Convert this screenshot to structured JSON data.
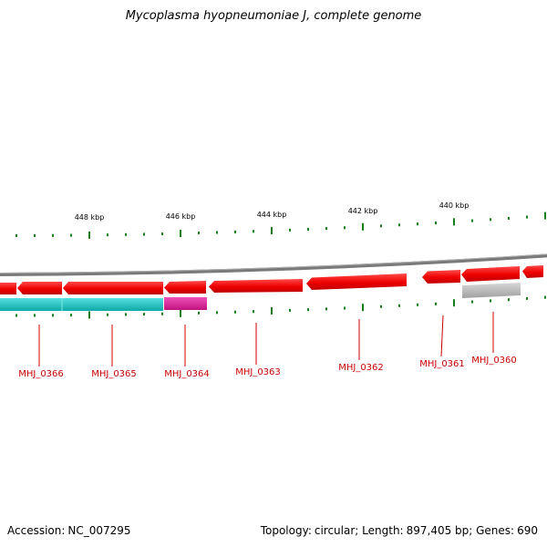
{
  "title": "Mycoplasma hyopneumoniae J, complete genome",
  "footer": {
    "accession_label": "Accession:",
    "accession": "NC_007295",
    "topology_label": "Topology:",
    "topology": "circular",
    "length_label": "Length:",
    "length": "897,405 bp",
    "genes_label": "Genes:",
    "genes": "690"
  },
  "ruler": {
    "labels": [
      "448 kbp",
      "446 kbp",
      "444 kbp",
      "442 kbp",
      "440 kbp"
    ]
  },
  "genes": [
    {
      "locus": "MHJ_0366"
    },
    {
      "locus": "MHJ_0365"
    },
    {
      "locus": "MHJ_0364"
    },
    {
      "locus": "MHJ_0363"
    },
    {
      "locus": "MHJ_0362"
    },
    {
      "locus": "MHJ_0361"
    },
    {
      "locus": "MHJ_0360"
    }
  ],
  "colors": {
    "cds": "#ee0000",
    "cds_light": "#ff5555",
    "cog_cyan": "#22c8c8",
    "cog_magenta": "#e0209a",
    "cog_grey": "#b8b8b8",
    "backbone": "#808080",
    "tick": "#1a7a1a",
    "label": "#cc0000"
  }
}
